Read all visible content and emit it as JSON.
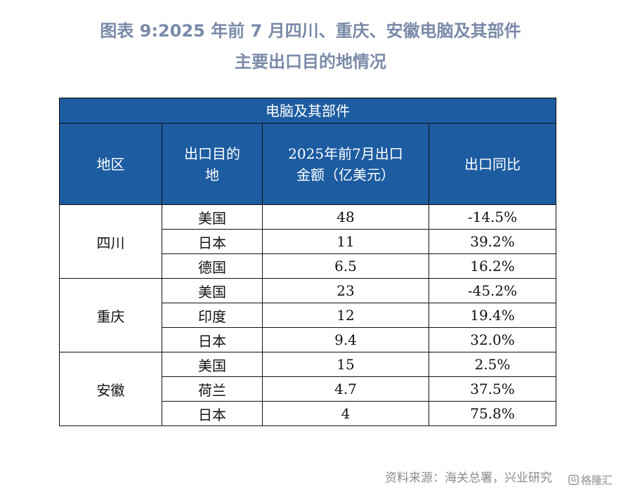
{
  "title_line1": "图表 9:2025 年前 7 月四川、重庆、安徽电脑及其部件",
  "title_line2": "主要出口目的地情况",
  "chart_data": {
    "type": "table",
    "table_title": "电脑及其部件",
    "columns": [
      "地区",
      "出口目的地",
      "2025年前7月出口金额（亿美元）",
      "出口同比"
    ],
    "column_display": [
      "地区",
      "出口目的\n地",
      "2025年前7月出口\n金额（亿美元）",
      "出口同比"
    ],
    "groups": [
      {
        "region": "四川",
        "rows": [
          {
            "destination": "美国",
            "amount": "48",
            "yoy": "-14.5%"
          },
          {
            "destination": "日本",
            "amount": "11",
            "yoy": "39.2%"
          },
          {
            "destination": "德国",
            "amount": "6.5",
            "yoy": "16.2%"
          }
        ]
      },
      {
        "region": "重庆",
        "rows": [
          {
            "destination": "美国",
            "amount": "23",
            "yoy": "-45.2%"
          },
          {
            "destination": "印度",
            "amount": "12",
            "yoy": "19.4%"
          },
          {
            "destination": "日本",
            "amount": "9.4",
            "yoy": "32.0%"
          }
        ]
      },
      {
        "region": "安徽",
        "rows": [
          {
            "destination": "美国",
            "amount": "15",
            "yoy": "2.5%"
          },
          {
            "destination": "荷兰",
            "amount": "4.7",
            "yoy": "37.5%"
          },
          {
            "destination": "日本",
            "amount": "4",
            "yoy": "75.8%"
          }
        ]
      }
    ]
  },
  "source": "资料来源：海关总署，兴业研究",
  "watermark": "格隆汇",
  "colors": {
    "header_bg": "#1d5ca0",
    "title": "#7a8aa8",
    "source": "#8a8a8a"
  }
}
